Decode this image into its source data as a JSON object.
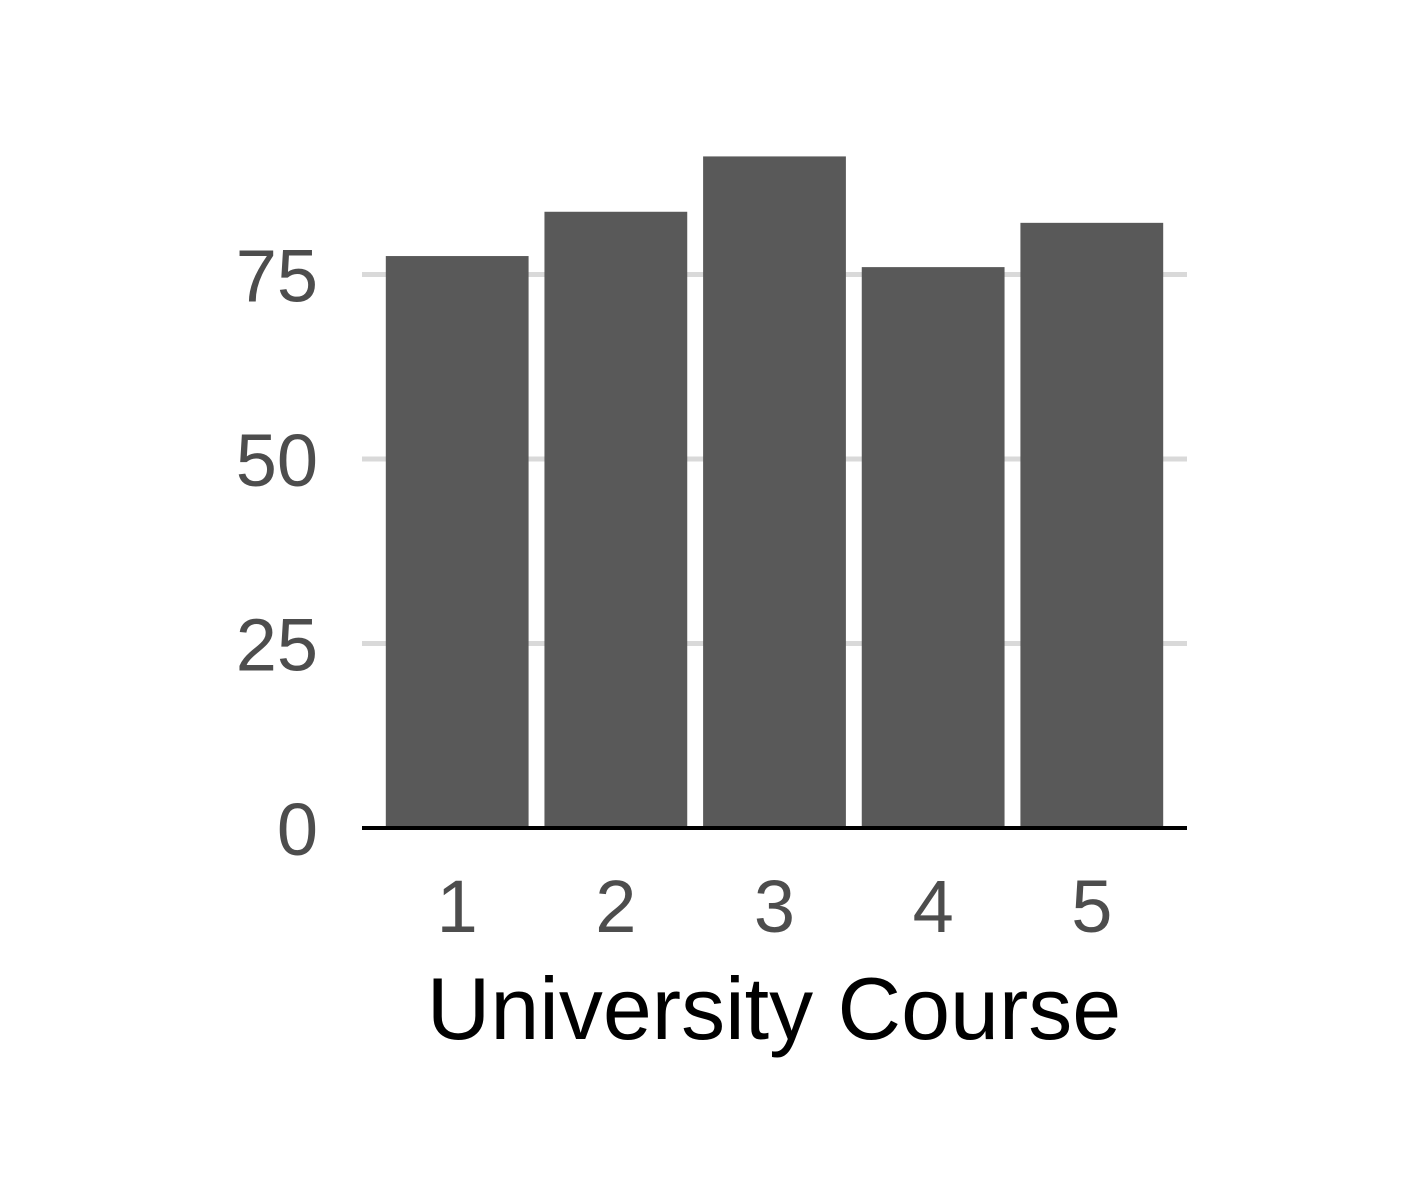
{
  "chart_data": {
    "type": "bar",
    "categories": [
      "1",
      "2",
      "3",
      "4",
      "5"
    ],
    "values": [
      77.5,
      83.5,
      91,
      76,
      82
    ],
    "title": "",
    "xlabel": "University Course",
    "ylabel": "",
    "ylim": [
      0,
      100
    ],
    "yticks": [
      0,
      25,
      50,
      75
    ],
    "grid": "horizontal major",
    "legend": "none",
    "colors": {
      "bar": "#595959",
      "grid": "#d9d9d9",
      "axis": "#000000",
      "tick_text": "#4d4d4d",
      "title_text": "#000000"
    }
  }
}
